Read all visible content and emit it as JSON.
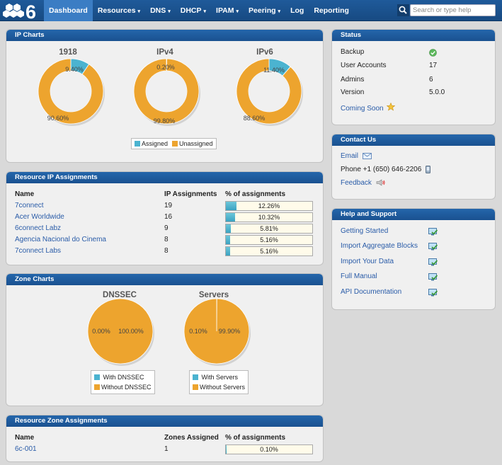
{
  "nav": {
    "items": [
      {
        "label": "Dashboard",
        "active": true,
        "caret": false
      },
      {
        "label": "Resources",
        "caret": true
      },
      {
        "label": "DNS",
        "caret": true
      },
      {
        "label": "DHCP",
        "caret": true
      },
      {
        "label": "IPAM",
        "caret": true
      },
      {
        "label": "Peering",
        "caret": true
      },
      {
        "label": "Log",
        "caret": false
      },
      {
        "label": "Reporting",
        "caret": false
      }
    ],
    "caret_glyph": "▾",
    "search_placeholder": "Search or type help"
  },
  "ip_charts": {
    "header": "IP Charts",
    "legend": {
      "assigned": "Assigned",
      "unassigned": "Unassigned"
    },
    "colors": {
      "assigned": "#4bb3d0",
      "unassigned": "#eda42e"
    }
  },
  "chart_data": [
    {
      "type": "pie",
      "title": "1918",
      "labels": [
        "Assigned",
        "Unassigned"
      ],
      "values": [
        9.4,
        90.6
      ],
      "value_labels": [
        "9.40%",
        "90.60%"
      ],
      "donut": true
    },
    {
      "type": "pie",
      "title": "IPv4",
      "labels": [
        "Assigned",
        "Unassigned"
      ],
      "values": [
        0.2,
        99.8
      ],
      "value_labels": [
        "0.20%",
        "99.80%"
      ],
      "donut": true
    },
    {
      "type": "pie",
      "title": "IPv6",
      "labels": [
        "Assigned",
        "Unassigned"
      ],
      "values": [
        11.4,
        88.6
      ],
      "value_labels": [
        "11.40%",
        "88.60%"
      ],
      "donut": true
    },
    {
      "type": "pie",
      "title": "DNSSEC",
      "labels": [
        "With DNSSEC",
        "Without DNSSEC"
      ],
      "values": [
        0.0,
        100.0
      ],
      "value_labels": [
        "0.00%",
        "100.00%"
      ],
      "donut": false
    },
    {
      "type": "pie",
      "title": "Servers",
      "labels": [
        "With Servers",
        "Without Servers"
      ],
      "values": [
        0.1,
        99.9
      ],
      "value_labels": [
        "0.10%",
        "99.90%"
      ],
      "donut": false
    }
  ],
  "resource_ip": {
    "header": "Resource IP Assignments",
    "columns": {
      "name": "Name",
      "count": "IP Assignments",
      "pct": "% of assignments"
    },
    "rows": [
      {
        "name": "7connect",
        "count": "19",
        "pct_label": "12.26%",
        "pct": 12.26
      },
      {
        "name": "Acer Worldwide",
        "count": "16",
        "pct_label": "10.32%",
        "pct": 10.32
      },
      {
        "name": "6connect Labz",
        "count": "9",
        "pct_label": "5.81%",
        "pct": 5.81
      },
      {
        "name": "Agencia Nacional do Cinema",
        "count": "8",
        "pct_label": "5.16%",
        "pct": 5.16
      },
      {
        "name": "7connect Labs",
        "count": "8",
        "pct_label": "5.16%",
        "pct": 5.16
      }
    ]
  },
  "zone_charts": {
    "header": "Zone Charts",
    "dnssec_legend": [
      "With DNSSEC",
      "Without DNSSEC"
    ],
    "servers_legend": [
      "With Servers",
      "Without Servers"
    ]
  },
  "resource_zone": {
    "header": "Resource Zone Assignments",
    "columns": {
      "name": "Name",
      "count": "Zones Assigned",
      "pct": "% of assignments"
    },
    "rows": [
      {
        "name": "6c-001",
        "count": "1",
        "pct_label": "0.10%",
        "pct": 0.1
      }
    ]
  },
  "status": {
    "header": "Status",
    "rows": [
      {
        "label": "Backup",
        "value": "",
        "icon": "check-icon"
      },
      {
        "label": "User Accounts",
        "value": "17"
      },
      {
        "label": "Admins",
        "value": "6"
      },
      {
        "label": "Version",
        "value": "5.0.0"
      }
    ],
    "coming_soon": "Coming Soon"
  },
  "contact": {
    "header": "Contact Us",
    "email": "Email",
    "phone": "Phone +1 (650) 646-2206",
    "feedback": "Feedback"
  },
  "help": {
    "header": "Help and Support",
    "items": [
      "Getting Started",
      "Import Aggregate Blocks",
      "Import Your Data",
      "Full Manual",
      "API Documentation"
    ]
  }
}
